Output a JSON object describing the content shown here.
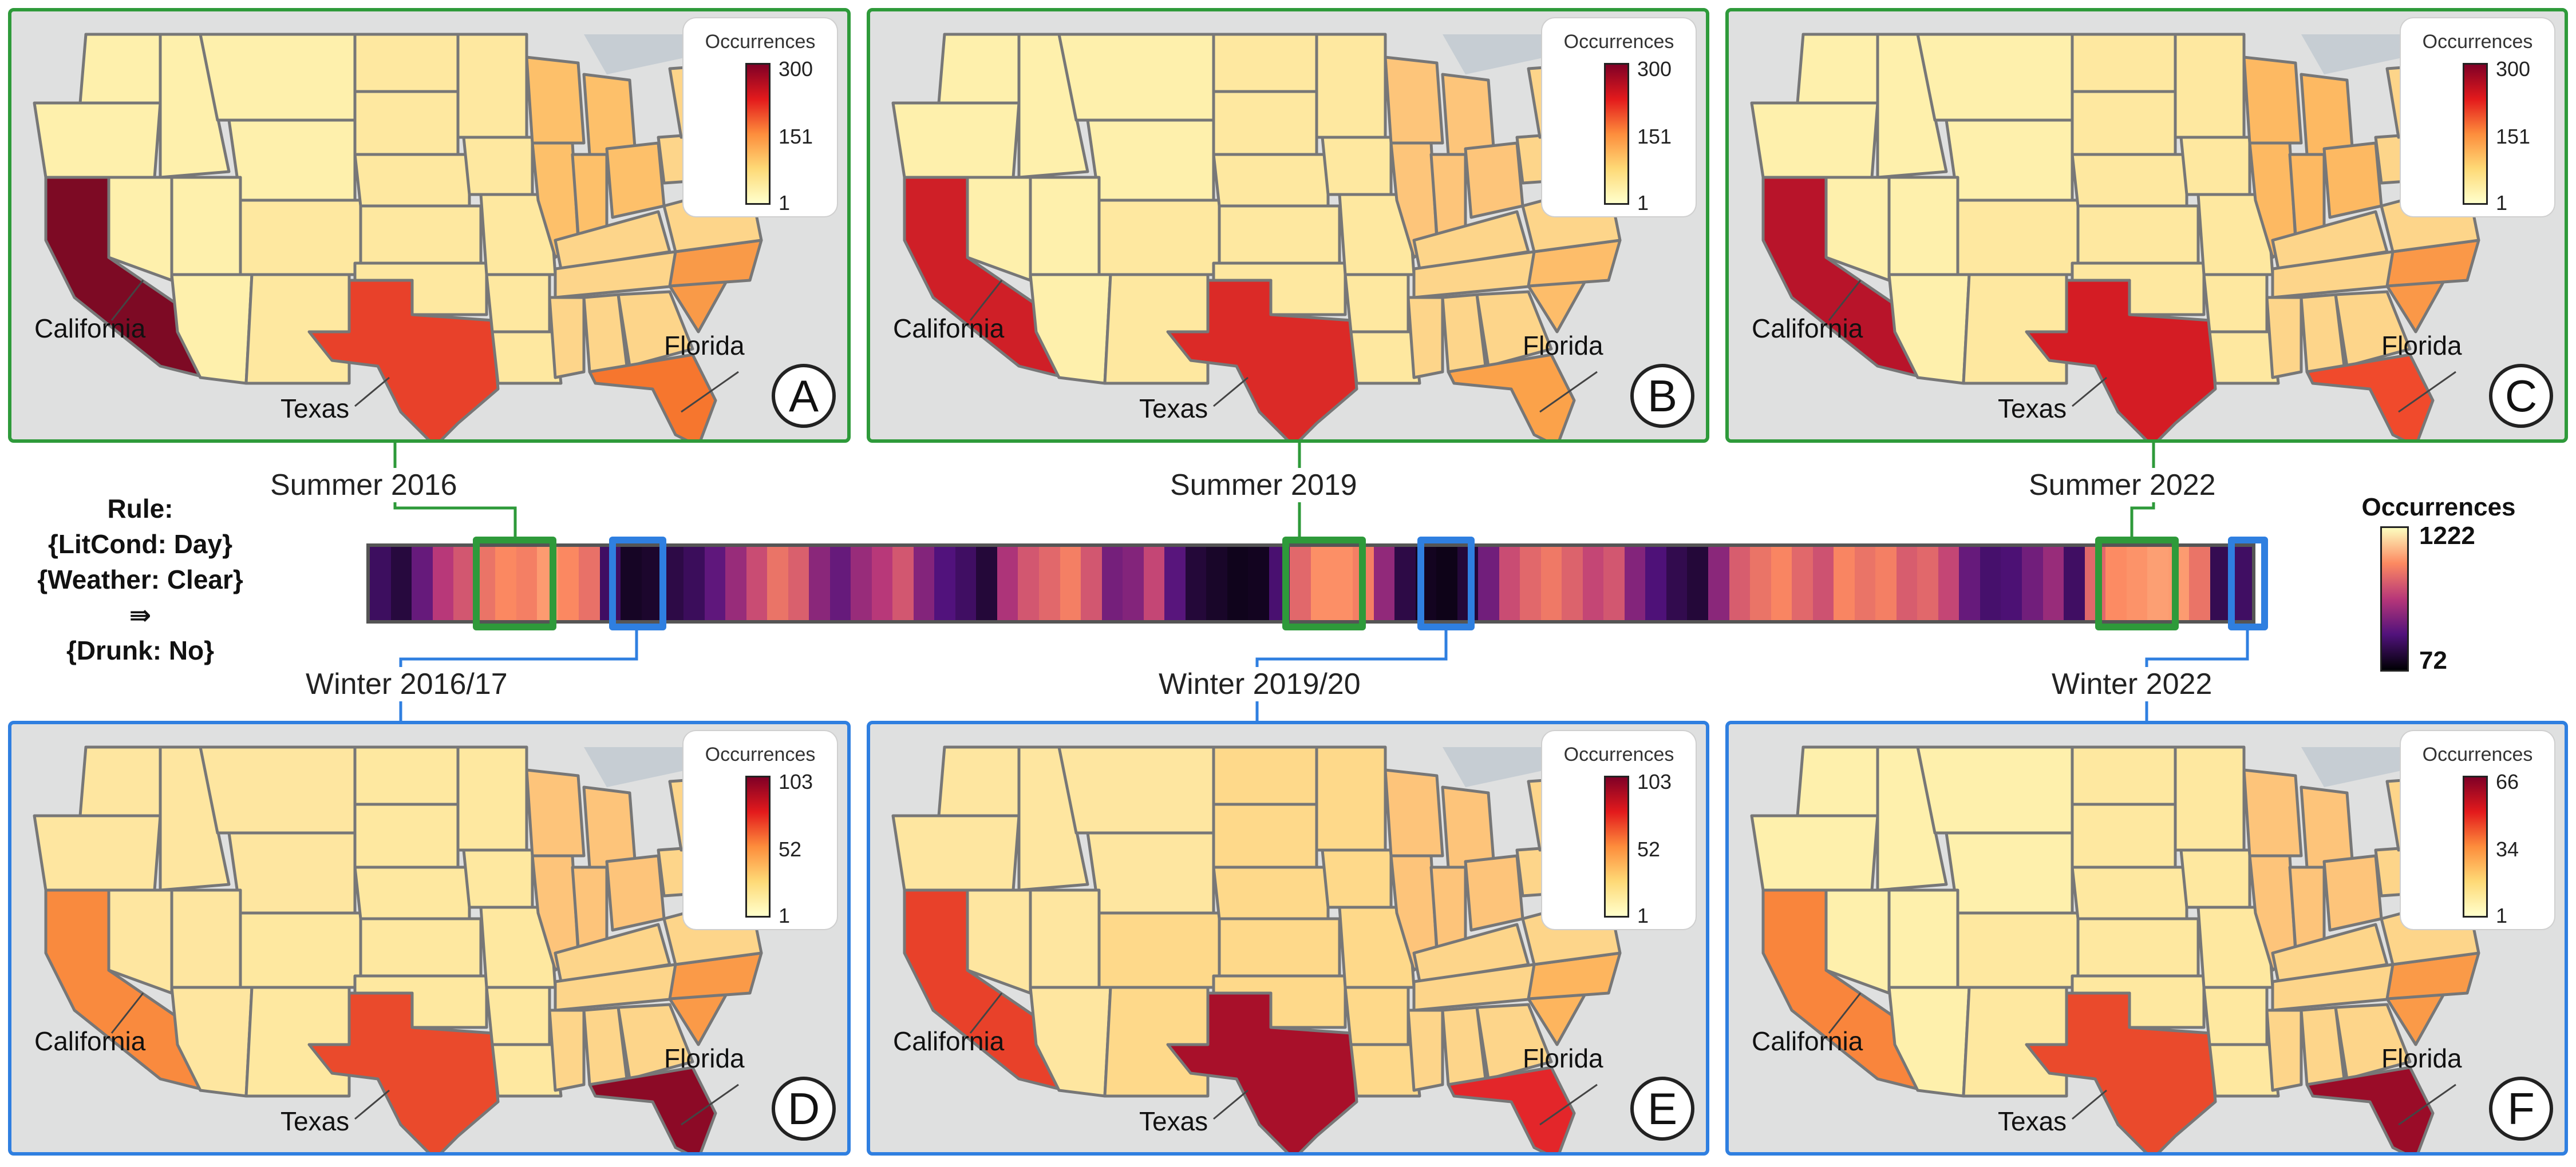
{
  "rule": {
    "heading": "Rule:",
    "antecedent_1": "{LitCond: Day}",
    "antecedent_2": "{Weather: Clear}",
    "arrow": "⇛",
    "consequent": "{Drunk: No}"
  },
  "timeline_legend": {
    "title": "Occurrences",
    "max": "1222",
    "min": "72",
    "gradient": [
      "#fcfdbf",
      "#fc8961",
      "#b73779",
      "#51127c",
      "#000004"
    ]
  },
  "timeline": {
    "cells": [
      290,
      210,
      420,
      650,
      760,
      860,
      930,
      900,
      980,
      930,
      850,
      300,
      150,
      170,
      230,
      280,
      400,
      560,
      720,
      860,
      790,
      520,
      420,
      560,
      650,
      760,
      500,
      360,
      300,
      200,
      620,
      760,
      820,
      900,
      760,
      460,
      500,
      700,
      380,
      200,
      160,
      130,
      140,
      330,
      820,
      950,
      950,
      900,
      540,
      230,
      140,
      120,
      200,
      450,
      720,
      820,
      880,
      800,
      700,
      760,
      500,
      350,
      250,
      200,
      520,
      780,
      860,
      920,
      820,
      740,
      920,
      860,
      900,
      780,
      820,
      700,
      420,
      320,
      340,
      450,
      560,
      300,
      820,
      940,
      960,
      990,
      980,
      860,
      260,
      300
    ]
  },
  "periods": [
    {
      "label": "Summer  2016",
      "season": "summer"
    },
    {
      "label": "Summer  2019",
      "season": "summer"
    },
    {
      "label": "Summer  2022",
      "season": "summer"
    },
    {
      "label": "Winter  2016/17",
      "season": "winter"
    },
    {
      "label": "Winter  2019/20",
      "season": "winter"
    },
    {
      "label": "Winter  2022",
      "season": "winter"
    }
  ],
  "palette": {
    "summer_border": "#2e9a3a",
    "winter_border": "#2f7fe0",
    "map_gradient": [
      "#ffffcc",
      "#fed976",
      "#fd8d3c",
      "#e31a1c",
      "#800026"
    ]
  },
  "panels": [
    {
      "letter": "A",
      "legend_title": "Occurrences",
      "legend_max": "300",
      "legend_mid": "151",
      "legend_min": "1",
      "labels": {
        "california": "California",
        "texas": "Texas",
        "florida": "Florida"
      },
      "state_colors": {
        "west": "#fef0ac",
        "california": "#7d0a24",
        "texas": "#e8412a",
        "central": "#fee8a0",
        "midwest": "#fdc06a",
        "east": "#fdd58a",
        "florida": "#f6762e",
        "carolina": "#f99a48"
      }
    },
    {
      "letter": "B",
      "legend_title": "Occurrences",
      "legend_max": "300",
      "legend_mid": "151",
      "legend_min": "1",
      "labels": {
        "california": "California",
        "texas": "Texas",
        "florida": "Florida"
      },
      "state_colors": {
        "west": "#fef0ac",
        "california": "#cf1f27",
        "texas": "#db2a27",
        "central": "#fee8a0",
        "midwest": "#fdc57a",
        "east": "#fdd58a",
        "florida": "#fba24a",
        "carolina": "#fdbd6a"
      }
    },
    {
      "letter": "C",
      "legend_title": "Occurrences",
      "legend_max": "300",
      "legend_mid": "151",
      "legend_min": "1",
      "labels": {
        "california": "California",
        "texas": "Texas",
        "florida": "Florida"
      },
      "state_colors": {
        "west": "#fef0ac",
        "california": "#b8142a",
        "texas": "#d41c24",
        "central": "#fee8a0",
        "midwest": "#fdb962",
        "east": "#fdd58a",
        "florida": "#f04a2c",
        "carolina": "#fa9848"
      }
    },
    {
      "letter": "D",
      "legend_title": "Occurrences",
      "legend_max": "103",
      "legend_mid": "52",
      "legend_min": "1",
      "labels": {
        "california": "California",
        "texas": "Texas",
        "florida": "Florida"
      },
      "state_colors": {
        "west": "#fee6a0",
        "california": "#f98a3e",
        "texas": "#ea4a2c",
        "central": "#fee8a0",
        "midwest": "#fdc47a",
        "east": "#fdd58a",
        "florida": "#8c0a26",
        "carolina": "#fa9a48"
      }
    },
    {
      "letter": "E",
      "legend_title": "Occurrences",
      "legend_max": "103",
      "legend_mid": "52",
      "legend_min": "1",
      "labels": {
        "california": "California",
        "texas": "Texas",
        "florida": "Florida"
      },
      "state_colors": {
        "west": "#fee6a0",
        "california": "#e8412a",
        "texas": "#a8102a",
        "central": "#fed98a",
        "midwest": "#fdc47a",
        "east": "#fdd58a",
        "florida": "#e3262a",
        "carolina": "#fdb55e"
      }
    },
    {
      "letter": "F",
      "legend_title": "Occurrences",
      "legend_max": "66",
      "legend_mid": "34",
      "legend_min": "1",
      "labels": {
        "california": "California",
        "texas": "Texas",
        "florida": "Florida"
      },
      "state_colors": {
        "west": "#fef0ac",
        "california": "#f9853c",
        "texas": "#ea4a2c",
        "central": "#fee8a0",
        "midwest": "#fdc47a",
        "east": "#fdd58a",
        "florida": "#9a0c28",
        "carolina": "#fa9a48"
      }
    }
  ]
}
